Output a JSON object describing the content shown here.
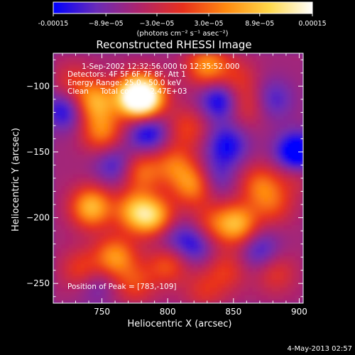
{
  "chart_data": {
    "type": "heatmap",
    "title": "Reconstructed RHESSI Image",
    "xlabel": "Heliocentric X (arcsec)",
    "ylabel": "Heliocentric Y (arcsec)",
    "xlim": [
      713,
      903
    ],
    "ylim": [
      -265,
      -75
    ],
    "x_ticks": [
      750,
      800,
      850,
      900
    ],
    "y_ticks": [
      -100,
      -150,
      -200,
      -250
    ],
    "colorbar": {
      "range": [
        -0.00015,
        0.00015
      ],
      "tick_values": [
        -0.00015,
        -8.9e-05,
        -3e-05,
        3e-05,
        8.9e-05,
        0.00015
      ],
      "tick_labels": [
        "-0.00015",
        "−8.9e−05",
        "−3.0e−05",
        "3.0e−05",
        "8.9e−05",
        "0.00015"
      ],
      "unit_label": "(photons cm⁻² s⁻¹ asec⁻²)",
      "colors": [
        "#0000ff",
        "#6a2bb8",
        "#b0246a",
        "#e8301c",
        "#ff8a10",
        "#ffd84a",
        "#ffffff"
      ]
    },
    "annotations": [
      "1-Sep-2002 12:32:56.000 to 12:35:52.000",
      "Detectors: 4F 5F 6F 7F 8F, Att 1",
      "Energy Range: 25.0 - 50.0 keV",
      "Clean     Total counts: 2.47E+03"
    ],
    "peak_text": "Position of Peak = [783,-109]",
    "sources": [
      {
        "x": 775,
        "y": -108,
        "v": 1.0
      },
      {
        "x": 783,
        "y": -109,
        "v": 1.0
      },
      {
        "x": 745,
        "y": -112,
        "v": 0.75
      },
      {
        "x": 830,
        "y": -85,
        "v": 0.7
      },
      {
        "x": 728,
        "y": -98,
        "v": 0.35
      },
      {
        "x": 750,
        "y": -135,
        "v": 0.6
      },
      {
        "x": 815,
        "y": -132,
        "v": 0.4
      },
      {
        "x": 852,
        "y": -95,
        "v": 0.35
      },
      {
        "x": 860,
        "y": -115,
        "v": 0.35
      },
      {
        "x": 742,
        "y": -192,
        "v": 0.85
      },
      {
        "x": 775,
        "y": -195,
        "v": 0.7
      },
      {
        "x": 790,
        "y": -200,
        "v": 0.8
      },
      {
        "x": 820,
        "y": -175,
        "v": 0.7
      },
      {
        "x": 805,
        "y": -160,
        "v": 0.5
      },
      {
        "x": 780,
        "y": -165,
        "v": 0.55
      },
      {
        "x": 833,
        "y": -205,
        "v": 0.4
      },
      {
        "x": 853,
        "y": -205,
        "v": 0.8
      },
      {
        "x": 870,
        "y": -175,
        "v": 0.5
      },
      {
        "x": 880,
        "y": -190,
        "v": 0.4
      },
      {
        "x": 760,
        "y": -230,
        "v": 0.7
      },
      {
        "x": 735,
        "y": -240,
        "v": 0.45
      },
      {
        "x": 775,
        "y": -250,
        "v": 0.4
      },
      {
        "x": 800,
        "y": -235,
        "v": 0.5
      },
      {
        "x": 845,
        "y": -240,
        "v": 0.35
      },
      {
        "x": 882,
        "y": -242,
        "v": 0.35
      },
      {
        "x": 828,
        "y": -255,
        "v": 0.3
      },
      {
        "x": 897,
        "y": -165,
        "v": 0.35
      },
      {
        "x": 898,
        "y": -152,
        "v": -0.9
      },
      {
        "x": 840,
        "y": -110,
        "v": -0.6
      },
      {
        "x": 785,
        "y": -135,
        "v": -0.55
      },
      {
        "x": 722,
        "y": -118,
        "v": -0.5
      },
      {
        "x": 760,
        "y": -160,
        "v": -0.4
      },
      {
        "x": 845,
        "y": -145,
        "v": -0.5
      },
      {
        "x": 835,
        "y": -170,
        "v": -0.35
      },
      {
        "x": 820,
        "y": -220,
        "v": -0.45
      },
      {
        "x": 800,
        "y": -215,
        "v": -0.3
      },
      {
        "x": 870,
        "y": -225,
        "v": -0.4
      },
      {
        "x": 745,
        "y": -250,
        "v": -0.3
      },
      {
        "x": 880,
        "y": -110,
        "v": -0.35
      }
    ]
  },
  "footer": {
    "date": "4-May-2013 02:57"
  }
}
